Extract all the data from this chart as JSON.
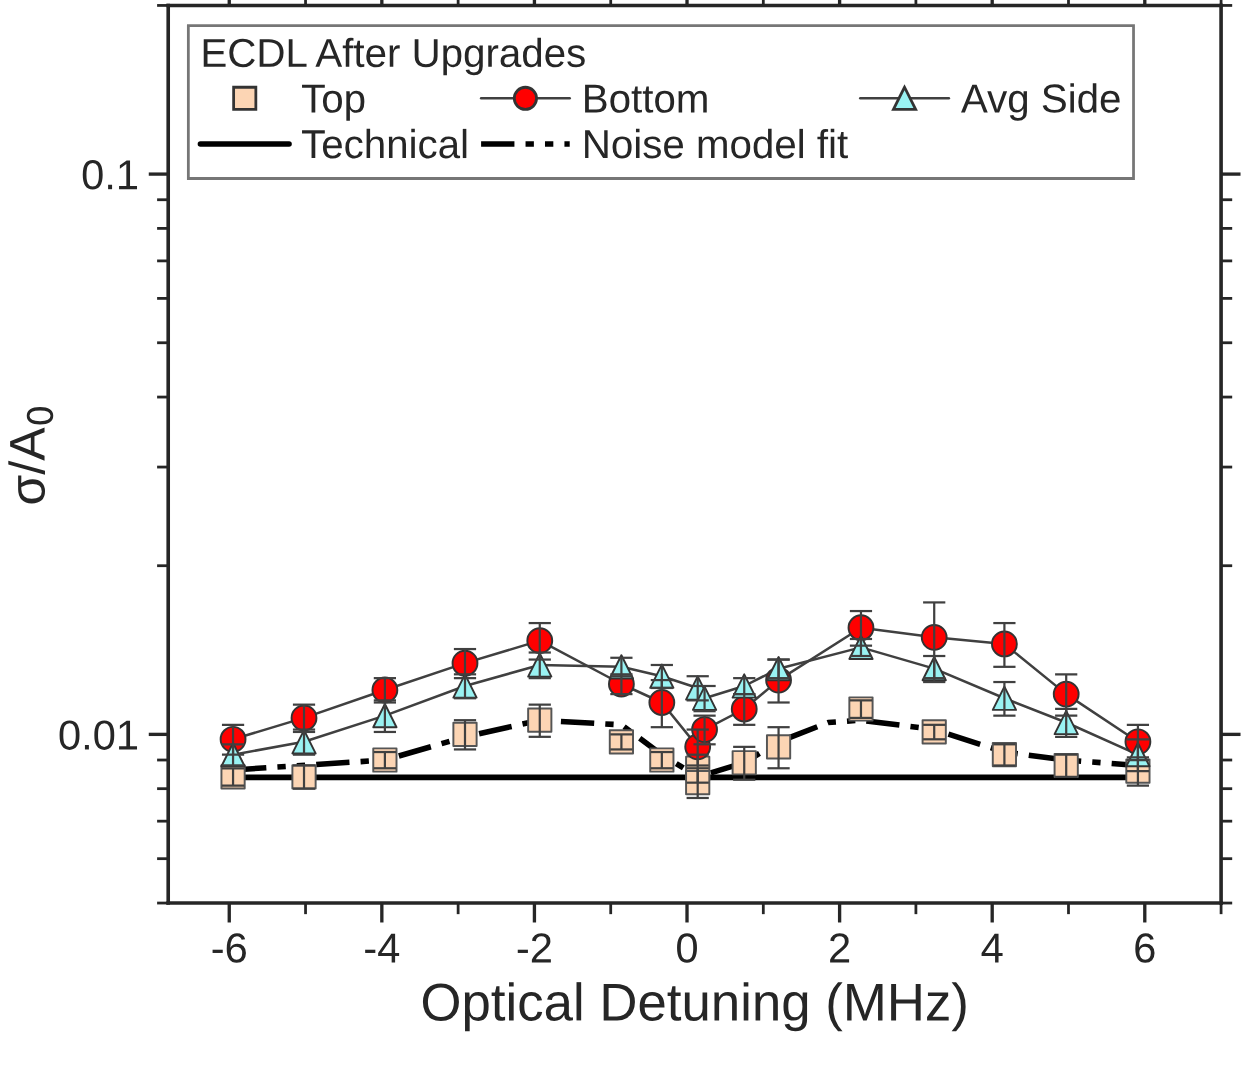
{
  "chart_data": {
    "type": "scatter",
    "xlabel": "Optical Detuning (MHz)",
    "ylabel": "σ/A$_{0}$",
    "legend_title": "ECDL After Upgrades",
    "legend": "top left",
    "log": "y",
    "xlim": [
      -6.8,
      7.0
    ],
    "xticks": [
      -6,
      -4,
      -2,
      0,
      2,
      4,
      6
    ],
    "ylim": [
      0.005,
      0.2
    ],
    "yticks": [
      0.01,
      0.1
    ],
    "grid": false,
    "series": [
      {
        "name": "Top",
        "type": "scatter",
        "marker": "square",
        "color": "#fcd5b4",
        "x": [
          -5.95,
          -5.02,
          -3.96,
          -2.91,
          -1.93,
          -0.86,
          -0.33,
          0.14,
          0.14,
          0.75,
          1.2,
          2.28,
          3.24,
          4.16,
          4.97,
          5.91
        ],
        "values": [
          0.0084,
          0.0084,
          0.009,
          0.01,
          0.0106,
          0.0097,
          0.009,
          0.0087,
          0.0082,
          0.0089,
          0.0095,
          0.0111,
          0.0101,
          0.0092,
          0.0088,
          0.0086
        ],
        "errors": [
          0.0003,
          0.0004,
          0.0003,
          0.0006,
          0.0007,
          0.0003,
          0.0003,
          0.0005,
          0.0005,
          0.0006,
          0.0008,
          0.0004,
          0.0003,
          0.0004,
          0.0004,
          0.0005
        ]
      },
      {
        "name": "Bottom",
        "type": "line",
        "marker": "circle",
        "line_style": "solid",
        "color": "#ff0000",
        "x": [
          -5.95,
          -5.02,
          -3.96,
          -2.91,
          -1.93,
          -0.86,
          -0.33,
          0.14,
          0.23,
          0.75,
          1.2,
          2.28,
          3.24,
          4.16,
          4.97,
          5.91
        ],
        "values": [
          0.0098,
          0.0107,
          0.012,
          0.0134,
          0.0147,
          0.0123,
          0.0114,
          0.0095,
          0.0102,
          0.0111,
          0.0125,
          0.0155,
          0.0149,
          0.0145,
          0.0118,
          0.0097
        ],
        "errors": [
          0.0006,
          0.0006,
          0.0006,
          0.0008,
          0.0011,
          0.0005,
          0.0011,
          0.0007,
          0.0006,
          0.0007,
          0.0011,
          0.0011,
          0.0023,
          0.0013,
          0.001,
          0.0007
        ]
      },
      {
        "name": "Avg Side",
        "type": "line",
        "marker": "triangle",
        "line_style": "solid",
        "color": "#99f2f2",
        "x": [
          -5.95,
          -5.02,
          -3.96,
          -2.91,
          -1.93,
          -0.86,
          -0.33,
          0.14,
          0.23,
          0.75,
          1.2,
          2.28,
          3.24,
          4.16,
          4.97,
          5.91
        ],
        "values": [
          0.0092,
          0.0097,
          0.0108,
          0.0122,
          0.0133,
          0.0132,
          0.0127,
          0.0121,
          0.0116,
          0.0122,
          0.0131,
          0.0143,
          0.0131,
          0.0116,
          0.0105,
          0.0092
        ],
        "errors": [
          0.0004,
          0.0005,
          0.0007,
          0.0006,
          0.0007,
          0.0005,
          0.0006,
          0.0006,
          0.0006,
          0.0004,
          0.0005,
          0.0005,
          0.0007,
          0.0008,
          0.0006,
          0.0006
        ]
      },
      {
        "name": "Technical",
        "type": "line",
        "marker": "none",
        "line_style": "solid",
        "color": "#000000",
        "x": [
          -5.95,
          5.91
        ],
        "values": [
          0.00838,
          0.00838
        ]
      },
      {
        "name": "Noise model fit",
        "type": "line",
        "marker": "none",
        "line_style": "dashdot",
        "color": "#000000",
        "x": [
          -5.95,
          -3.96,
          -2.91,
          -1.93,
          -0.86,
          -0.33,
          0.14,
          0.75,
          1.2,
          1.85,
          2.28,
          3.24,
          4.16,
          4.97,
          5.91
        ],
        "values": [
          0.00864,
          0.009,
          0.0099,
          0.0106,
          0.0104,
          0.0092,
          0.0084,
          0.0089,
          0.0097,
          0.0105,
          0.0106,
          0.0102,
          0.0093,
          0.009,
          0.0088
        ]
      }
    ]
  }
}
